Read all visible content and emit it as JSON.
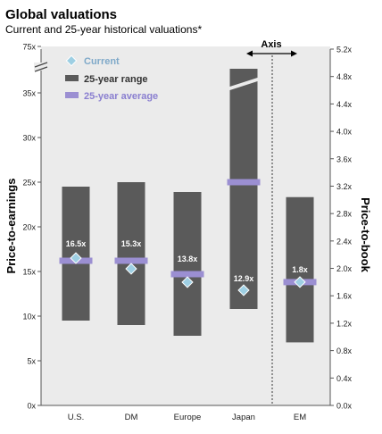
{
  "header": {
    "title": "Global valuations",
    "subtitle": "Current and 25-year historical valuations*"
  },
  "legend": {
    "current": "Current",
    "range": "25-year range",
    "average": "25-year average",
    "axis_label": "Axis"
  },
  "colors": {
    "background": "#ebebeb",
    "range": "#5a5a5a",
    "average": "#9b8fd2",
    "current": "#9ecfe3",
    "current_text": "#7fa9c9",
    "average_text": "#8a7fd0",
    "label_text": "#ffffff"
  },
  "chart_data": {
    "type": "bar",
    "categories": [
      "U.S.",
      "DM",
      "Europe",
      "Japan",
      "EM"
    ],
    "ylabel_left": "Price-to-earnings",
    "ylabel_right": "Price-to-book",
    "left_axis": {
      "ticks": [
        0,
        5,
        10,
        15,
        20,
        25,
        30,
        35
      ],
      "tick_labels": [
        "0x",
        "5x",
        "10x",
        "15x",
        "20x",
        "25x",
        "30x",
        "35x"
      ],
      "break_label": "75x",
      "range": [
        0,
        38
      ]
    },
    "right_axis": {
      "ticks": [
        0,
        0.4,
        0.8,
        1.2,
        1.6,
        2.0,
        2.4,
        2.8,
        3.2,
        3.6,
        4.0,
        4.4,
        4.8,
        5.2
      ],
      "tick_labels": [
        "0.0x",
        "0.4x",
        "0.8x",
        "1.2x",
        "1.6x",
        "2.0x",
        "2.4x",
        "2.8x",
        "3.2x",
        "3.6x",
        "4.0x",
        "4.4x",
        "4.8x",
        "5.2x"
      ],
      "range": [
        0,
        5.2
      ]
    },
    "series": [
      {
        "category": "U.S.",
        "axis": "left",
        "range_min": 9.5,
        "range_max": 24.5,
        "average": 16.2,
        "current": 16.5,
        "current_label": "16.5x"
      },
      {
        "category": "DM",
        "axis": "left",
        "range_min": 9.0,
        "range_max": 25.0,
        "average": 16.2,
        "current": 15.3,
        "current_label": "15.3x"
      },
      {
        "category": "Europe",
        "axis": "left",
        "range_min": 7.8,
        "range_max": 23.9,
        "average": 14.7,
        "current": 13.8,
        "current_label": "13.8x"
      },
      {
        "category": "Japan",
        "axis": "left",
        "range_min": 10.8,
        "range_max": 75,
        "average": 25.0,
        "current": 12.9,
        "current_label": "12.9x",
        "broken": true
      },
      {
        "category": "EM",
        "axis": "right",
        "range_min": 0.92,
        "range_max": 3.04,
        "average": 1.8,
        "current": 1.8,
        "current_label": "1.8x"
      }
    ]
  }
}
